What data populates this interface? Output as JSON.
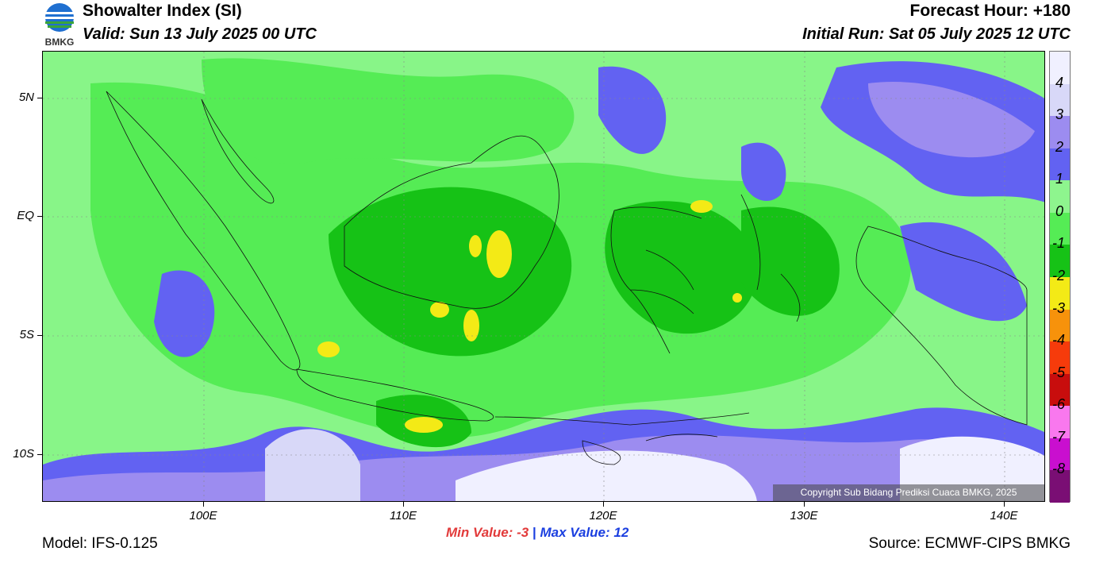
{
  "header": {
    "title": "Showalter Index (SI)",
    "valid": "Valid: Sun 13 July 2025 00 UTC",
    "forecast_hour": "Forecast Hour: +180",
    "initial_run": "Initial Run: Sat 05 July 2025 12 UTC"
  },
  "logo": {
    "text": "BMKG"
  },
  "map": {
    "lat_labels": [
      "5N",
      "EQ",
      "5S",
      "10S"
    ],
    "lon_labels": [
      "100E",
      "110E",
      "120E",
      "130E",
      "140E"
    ],
    "copyright": "Copyright Sub Bidang Prediksi Cuaca BMKG, 2025",
    "background_color": "#88f588"
  },
  "colorbar": {
    "labels": [
      "4",
      "3",
      "2",
      "1",
      "0",
      "-1",
      "-2",
      "-3",
      "-4",
      "-5",
      "-6",
      "-7",
      "-8"
    ],
    "colors": [
      "#f0f0ff",
      "#d8d8f8",
      "#9c8cf0",
      "#6262f2",
      "#8ef58e",
      "#55ec55",
      "#16c216",
      "#f3ea16",
      "#f7920b",
      "#f63b0b",
      "#c80d0d",
      "#f978ee",
      "#c90fcf",
      "#7a0e74"
    ]
  },
  "stats": {
    "min_label": "Min Value:",
    "min_value": "-3",
    "separator": "|",
    "max_label": "Max Value:",
    "max_value": "12"
  },
  "footer": {
    "model": "Model: IFS-0.125",
    "source": "Source: ECMWF-CIPS BMKG"
  }
}
